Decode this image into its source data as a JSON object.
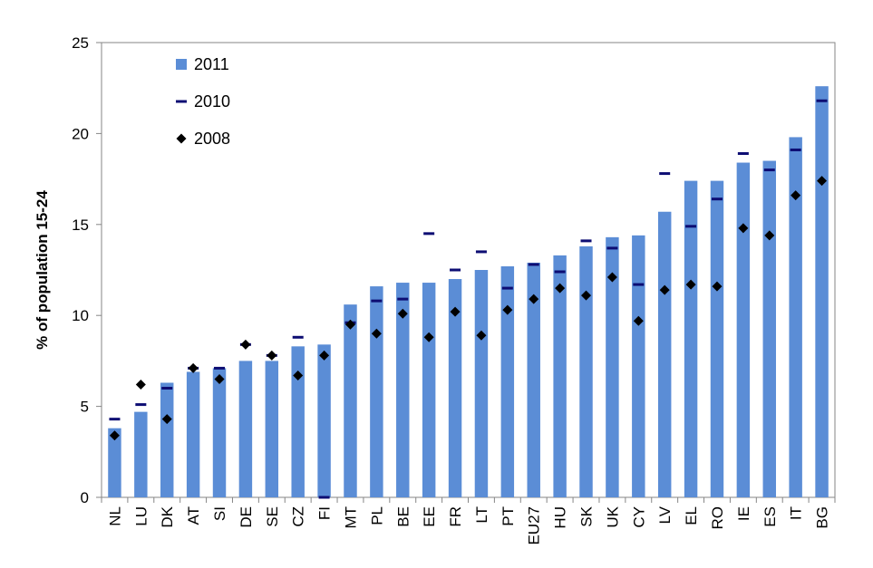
{
  "chart_data": {
    "type": "bar",
    "ylabel": "% of population 15-24",
    "xlabel": "",
    "ylim": [
      0,
      25
    ],
    "yticks": [
      0,
      5,
      10,
      15,
      20,
      25
    ],
    "grid": false,
    "legend_position": "top-left",
    "categories": [
      "NL",
      "LU",
      "DK",
      "AT",
      "SI",
      "DE",
      "SE",
      "CZ",
      "FI",
      "MT",
      "PL",
      "BE",
      "EE",
      "FR",
      "LT",
      "PT",
      "EU27",
      "HU",
      "SK",
      "UK",
      "CY",
      "LV",
      "EL",
      "RO",
      "IE",
      "ES",
      "IT",
      "BG"
    ],
    "series": [
      {
        "name": "2011",
        "kind": "bar",
        "color": "#5B8DD6",
        "values": [
          3.8,
          4.7,
          6.3,
          6.9,
          7.1,
          7.5,
          7.5,
          8.3,
          8.4,
          10.6,
          11.6,
          11.8,
          11.8,
          12.0,
          12.5,
          12.7,
          12.9,
          13.3,
          13.8,
          14.3,
          14.4,
          15.7,
          17.4,
          17.4,
          18.4,
          18.5,
          19.8,
          22.6
        ]
      },
      {
        "name": "2010",
        "kind": "dash",
        "color": "#0D0D73",
        "values": [
          4.3,
          5.1,
          6.0,
          7.1,
          7.1,
          8.4,
          7.8,
          8.8,
          0,
          9.6,
          10.8,
          10.9,
          14.5,
          12.5,
          13.5,
          11.5,
          12.8,
          12.4,
          14.1,
          13.7,
          11.7,
          17.8,
          14.9,
          16.4,
          18.9,
          18.0,
          19.1,
          21.8
        ]
      },
      {
        "name": "2008",
        "kind": "diamond",
        "color": "#000000",
        "values": [
          3.4,
          6.2,
          4.3,
          7.1,
          6.5,
          8.4,
          7.8,
          6.7,
          7.8,
          9.5,
          9.0,
          10.1,
          8.8,
          10.2,
          8.9,
          10.3,
          10.9,
          11.5,
          11.1,
          12.1,
          9.7,
          11.4,
          11.7,
          11.6,
          14.8,
          14.4,
          16.6,
          17.4
        ]
      }
    ]
  }
}
